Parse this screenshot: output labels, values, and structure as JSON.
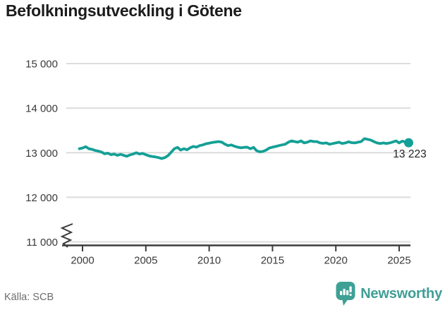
{
  "title": "Befolkningsutveckling i Götene",
  "source": "Källa: SCB",
  "brand": {
    "name": "Newsworthy",
    "logo_icon": "bar-chart-speech-bubble"
  },
  "colors": {
    "line": "#14a096",
    "dot": "#14a096",
    "grid": "#dcdcdc",
    "axis": "#3b3b3b",
    "tick_text": "#3a3a3a",
    "title_text": "#1c1c1c",
    "source_text": "#6d6d6d",
    "brand": "#3f9e96"
  },
  "chart_data": {
    "type": "line",
    "title": "Befolkningsutveckling i Götene",
    "xlabel": "",
    "ylabel": "",
    "grid": true,
    "legend": false,
    "axis_break": true,
    "xlim": [
      1999.5,
      2026.3
    ],
    "ylim": [
      11000,
      15000
    ],
    "x_ticks": [
      2000,
      2005,
      2010,
      2015,
      2020,
      2025
    ],
    "y_ticks": [
      {
        "value": 15000,
        "label": "15 000"
      },
      {
        "value": 14000,
        "label": "14 000"
      },
      {
        "value": 13000,
        "label": "13 000"
      },
      {
        "value": 12000,
        "label": "12 000"
      },
      {
        "value": 11000,
        "label": "11 000"
      }
    ],
    "x": [
      1999.75,
      2000.0,
      2000.25,
      2000.5,
      2000.75,
      2001.0,
      2001.25,
      2001.5,
      2001.75,
      2002.0,
      2002.25,
      2002.5,
      2002.75,
      2003.0,
      2003.25,
      2003.5,
      2003.75,
      2004.0,
      2004.25,
      2004.5,
      2004.75,
      2005.0,
      2005.25,
      2005.5,
      2005.75,
      2006.0,
      2006.25,
      2006.5,
      2006.75,
      2007.0,
      2007.25,
      2007.5,
      2007.75,
      2008.0,
      2008.25,
      2008.5,
      2008.75,
      2009.0,
      2009.25,
      2009.5,
      2009.75,
      2010.0,
      2010.25,
      2010.5,
      2010.75,
      2011.0,
      2011.25,
      2011.5,
      2011.75,
      2012.0,
      2012.25,
      2012.5,
      2012.75,
      2013.0,
      2013.25,
      2013.5,
      2013.75,
      2014.0,
      2014.25,
      2014.5,
      2014.75,
      2015.0,
      2015.25,
      2015.5,
      2015.75,
      2016.0,
      2016.25,
      2016.5,
      2016.75,
      2017.0,
      2017.25,
      2017.5,
      2017.75,
      2018.0,
      2018.25,
      2018.5,
      2018.75,
      2019.0,
      2019.25,
      2019.5,
      2019.75,
      2020.0,
      2020.25,
      2020.5,
      2020.75,
      2021.0,
      2021.25,
      2021.5,
      2021.75,
      2022.0,
      2022.25,
      2022.5,
      2022.75,
      2023.0,
      2023.25,
      2023.5,
      2023.75,
      2024.0,
      2024.25,
      2024.5,
      2024.75,
      2025.0,
      2025.25,
      2025.5,
      2025.75
    ],
    "y": [
      13090,
      13105,
      13135,
      13090,
      13075,
      13050,
      13035,
      13015,
      12975,
      12990,
      12955,
      12970,
      12940,
      12965,
      12940,
      12920,
      12950,
      12970,
      13000,
      12970,
      12985,
      12955,
      12930,
      12915,
      12905,
      12890,
      12870,
      12890,
      12935,
      13010,
      13090,
      13120,
      13060,
      13090,
      13065,
      13110,
      13140,
      13125,
      13160,
      13175,
      13200,
      13215,
      13230,
      13240,
      13250,
      13235,
      13190,
      13160,
      13175,
      13145,
      13125,
      13110,
      13120,
      13125,
      13090,
      13120,
      13045,
      13020,
      13030,
      13060,
      13105,
      13125,
      13140,
      13160,
      13175,
      13190,
      13235,
      13265,
      13250,
      13235,
      13265,
      13220,
      13235,
      13265,
      13250,
      13250,
      13220,
      13210,
      13220,
      13190,
      13205,
      13220,
      13235,
      13205,
      13220,
      13245,
      13225,
      13220,
      13235,
      13250,
      13315,
      13300,
      13285,
      13250,
      13220,
      13205,
      13220,
      13205,
      13220,
      13240,
      13265,
      13220,
      13260,
      13235,
      13223
    ],
    "end_point": {
      "x": 2025.75,
      "y": 13223,
      "label": "13 223"
    }
  }
}
